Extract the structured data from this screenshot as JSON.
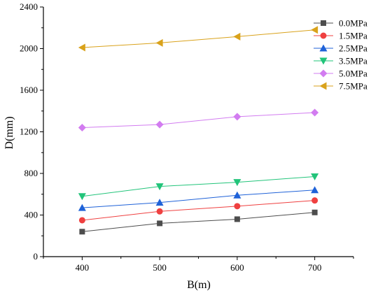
{
  "chart_data": {
    "type": "line",
    "title": "",
    "xlabel": "B(m)",
    "ylabel": "D(mm)",
    "x": [
      400,
      500,
      600,
      700
    ],
    "xlim": [
      350,
      750
    ],
    "ylim": [
      0,
      2400
    ],
    "xticks": [
      400,
      500,
      600,
      700
    ],
    "yticks": [
      0,
      400,
      800,
      1200,
      1600,
      2000,
      2400
    ],
    "grid": false,
    "legend_position": "top-right",
    "series": [
      {
        "name": "0.0MPa",
        "values": [
          240,
          320,
          360,
          425
        ],
        "color": "#4d4d4d",
        "marker": "square"
      },
      {
        "name": "1.5MPa",
        "values": [
          350,
          435,
          485,
          540
        ],
        "color": "#ef4040",
        "marker": "circle"
      },
      {
        "name": "2.5MPa",
        "values": [
          470,
          520,
          590,
          640
        ],
        "color": "#1f62d8",
        "marker": "triangle-up"
      },
      {
        "name": "3.5MPa",
        "values": [
          580,
          675,
          715,
          770
        ],
        "color": "#22c47a",
        "marker": "triangle-down"
      },
      {
        "name": "5.0MPa",
        "values": [
          1240,
          1270,
          1345,
          1385
        ],
        "color": "#d27cf0",
        "marker": "diamond"
      },
      {
        "name": "7.5MPa",
        "values": [
          2010,
          2055,
          2115,
          2180
        ],
        "color": "#d9a21b",
        "marker": "triangle-left"
      }
    ]
  }
}
